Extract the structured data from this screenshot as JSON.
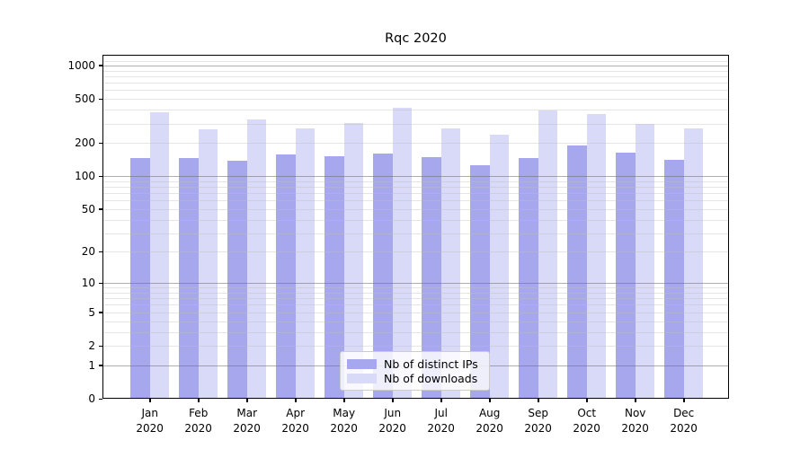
{
  "chart_data": {
    "type": "bar",
    "title": "Rqc 2020",
    "categories": [
      "Jan 2020",
      "Feb 2020",
      "Mar 2020",
      "Apr 2020",
      "May 2020",
      "Jun 2020",
      "Jul 2020",
      "Aug 2020",
      "Sep 2020",
      "Oct 2020",
      "Nov 2020",
      "Dec 2020"
    ],
    "x_tick_months": [
      "Jan",
      "Feb",
      "Mar",
      "Apr",
      "May",
      "Jun",
      "Jul",
      "Aug",
      "Sep",
      "Oct",
      "Nov",
      "Dec"
    ],
    "x_tick_year": "2020",
    "series": [
      {
        "name": "Nb of distinct IPs",
        "color": "#a7a7ee",
        "values": [
          146,
          146,
          139,
          158,
          151,
          161,
          149,
          126,
          145,
          189,
          163,
          140
        ]
      },
      {
        "name": "Nb of downloads",
        "color": "#d9d9f8",
        "values": [
          377,
          266,
          328,
          272,
          303,
          416,
          272,
          238,
          391,
          365,
          296,
          270
        ]
      }
    ],
    "xlabel": "",
    "ylabel": "",
    "y_scale": "log10(value+1)",
    "ylim": [
      0,
      1250
    ],
    "y_ticks": [
      0,
      1,
      2,
      5,
      10,
      20,
      50,
      100,
      200,
      500,
      1000
    ],
    "y_minor_ticks": [
      2,
      3,
      4,
      5,
      6,
      7,
      8,
      9,
      20,
      30,
      40,
      50,
      60,
      70,
      80,
      90,
      200,
      300,
      400,
      500,
      600,
      700,
      800,
      900,
      1100
    ],
    "grid": true,
    "legend_position": "lower center",
    "colors": {
      "bar_ips": "#a7a7ee",
      "bar_downloads": "#d9d9f8",
      "grid_major": "#b0b0b0",
      "grid_minor": "#e6e6e6",
      "axis": "#000000",
      "background": "#ffffff"
    }
  }
}
